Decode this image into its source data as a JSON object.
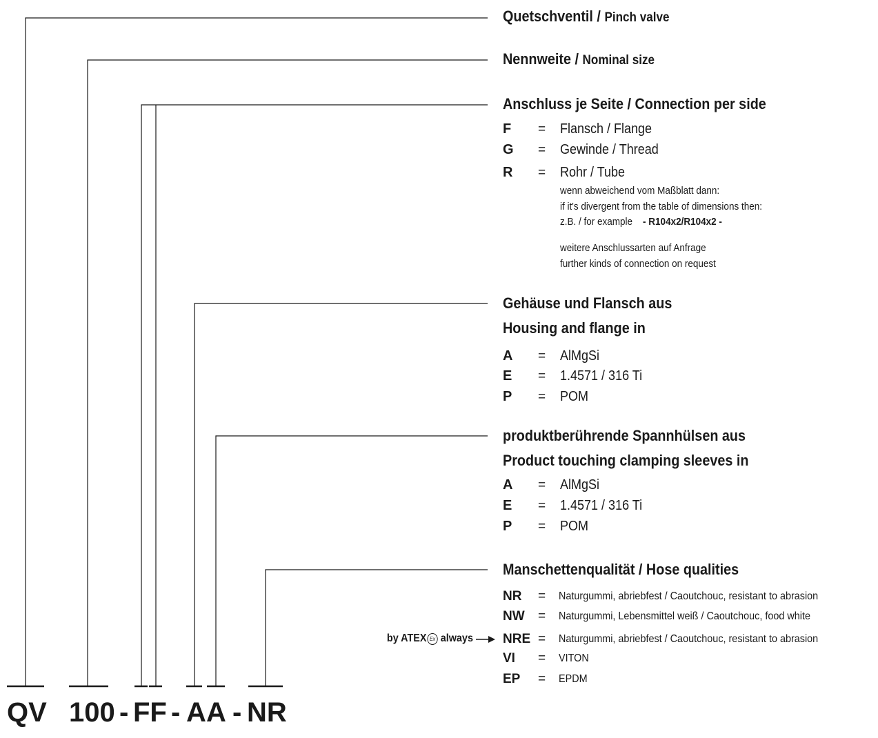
{
  "sections": {
    "valve": {
      "title_de": "Quetschventil / ",
      "title_en": "Pinch valve"
    },
    "size": {
      "title_de": "Nennweite / ",
      "title_en": "Nominal size"
    },
    "connection": {
      "title": "Anschluss je Seite / Connection per side",
      "options": [
        {
          "key": "F",
          "eq": "=",
          "value": "Flansch / Flange"
        },
        {
          "key": "G",
          "eq": "=",
          "value": "Gewinde / Thread"
        },
        {
          "key": "R",
          "eq": "=",
          "value": "Rohr / Tube"
        }
      ],
      "note_line1": "wenn abweichend vom Maßblatt dann:",
      "note_line2": "if it's divergent from the table of dimensions then:",
      "note_example_label": "z.B. / for example",
      "note_example_value": "- R104x2/R104x2 -",
      "note_more_de": "weitere Anschlussarten auf Anfrage",
      "note_more_en": "further kinds of connection on request"
    },
    "housing": {
      "title_de": "Gehäuse und Flansch aus",
      "title_en": "Housing and flange in",
      "options": [
        {
          "key": "A",
          "eq": "=",
          "value": "AlMgSi"
        },
        {
          "key": "E",
          "eq": "=",
          "value": "1.4571 / 316 Ti"
        },
        {
          "key": "P",
          "eq": "=",
          "value": "POM"
        }
      ]
    },
    "sleeves": {
      "title_de": "produktberührende Spannhülsen aus",
      "title_en": "Product touching clamping sleeves in",
      "options": [
        {
          "key": "A",
          "eq": "=",
          "value": "AlMgSi"
        },
        {
          "key": "E",
          "eq": "=",
          "value": "1.4571 / 316 Ti"
        },
        {
          "key": "P",
          "eq": "=",
          "value": "POM"
        }
      ]
    },
    "hose": {
      "title": "Manschettenqualität / Hose qualities",
      "options": [
        {
          "key": "NR",
          "eq": "=",
          "value": "Naturgummi, abriebfest / Caoutchouc, resistant to abrasion"
        },
        {
          "key": "NW",
          "eq": "=",
          "value": "Naturgummi, Lebensmittel weiß / Caoutchouc, food white"
        },
        {
          "key": "NRE",
          "eq": "=",
          "value": "Naturgummi, abriebfest / Caoutchouc, resistant to abrasion"
        },
        {
          "key": "VI",
          "eq": "=",
          "value": "VITON"
        },
        {
          "key": "EP",
          "eq": "=",
          "value": "EPDM"
        }
      ],
      "atex_note": "by ATEX",
      "atex_always": " always",
      "atex_symbol": "Ex"
    }
  },
  "code": {
    "qv": "QV",
    "size": "100",
    "dash1": "-",
    "connection": "FF",
    "dash2": "-",
    "housing": "A",
    "sleeves": "A",
    "dash3": "-",
    "hose": "NR"
  }
}
